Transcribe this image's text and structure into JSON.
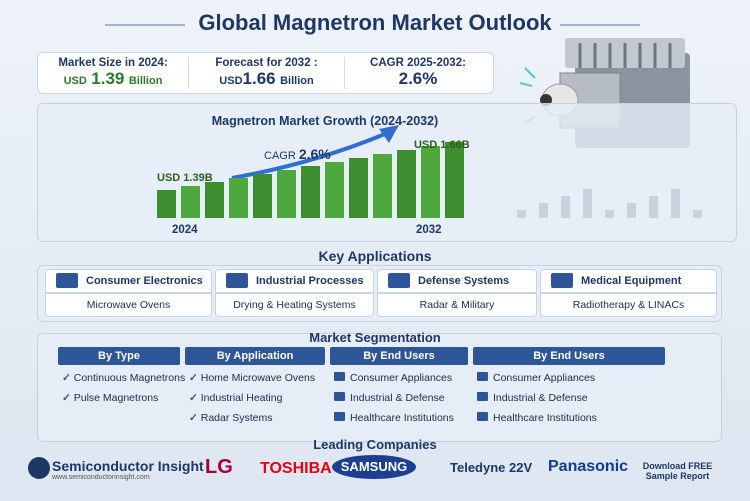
{
  "header": {
    "title": "Global Magnetron Market Outlook"
  },
  "stats": [
    {
      "label": "Market Size in 2024:",
      "prefix": "USD",
      "value": "1.39",
      "suffix": "Billion"
    },
    {
      "label": "Forecast for 2032 :",
      "prefix": "USD",
      "value": "1.66",
      "suffix": "Billion"
    },
    {
      "label": "CAGR 2025-2032:",
      "value": "2.6%"
    }
  ],
  "growth": {
    "title": "Magnetron Market Growth (2024-2032)",
    "cagr_label": "CAGR",
    "cagr_value": "2.6%",
    "start_label": "USD 1.39B",
    "end_label": "USD 1.66B",
    "start_year": "2024",
    "end_year": "2032"
  },
  "applications": {
    "title": "Key Applications",
    "items": [
      {
        "heading": "Consumer Electronics",
        "sub": "Microwave Ovens"
      },
      {
        "heading": "Industrial Processes",
        "sub": "Drying & Heating Systems"
      },
      {
        "heading": "Defense Systems",
        "sub": "Radar & Military"
      },
      {
        "heading": "Medical Equipment",
        "sub": "Radiotherapy & LINACs"
      }
    ]
  },
  "segmentation": {
    "title": "Market Segmentation",
    "columns": [
      {
        "heading": "By Type",
        "items": [
          "Continuous Magnetrons",
          "Pulse Magnetrons"
        ]
      },
      {
        "heading": "By Application",
        "items": [
          "Home Microwave Ovens",
          "Industrial Heating",
          "Radar Systems"
        ]
      },
      {
        "heading": "By End Users",
        "items": [
          "Consumer Appliances",
          "Industrial & Defense",
          "Healthcare Institutions"
        ]
      },
      {
        "heading": "By End Users",
        "items": [
          "Consumer Appliances",
          "Industrial & Defense",
          "Healthcare Institutions"
        ]
      }
    ]
  },
  "companies": {
    "title": "Leading Companies",
    "brand": "Semiconductor Insight",
    "url": "www.semiconductorinsight.com",
    "logos": [
      "LG",
      "TOSHIBA",
      "SAMSUNG",
      "Teledyne 22V",
      "Panasonic"
    ],
    "cta": [
      "Download FREE",
      "Sample Report"
    ]
  }
}
